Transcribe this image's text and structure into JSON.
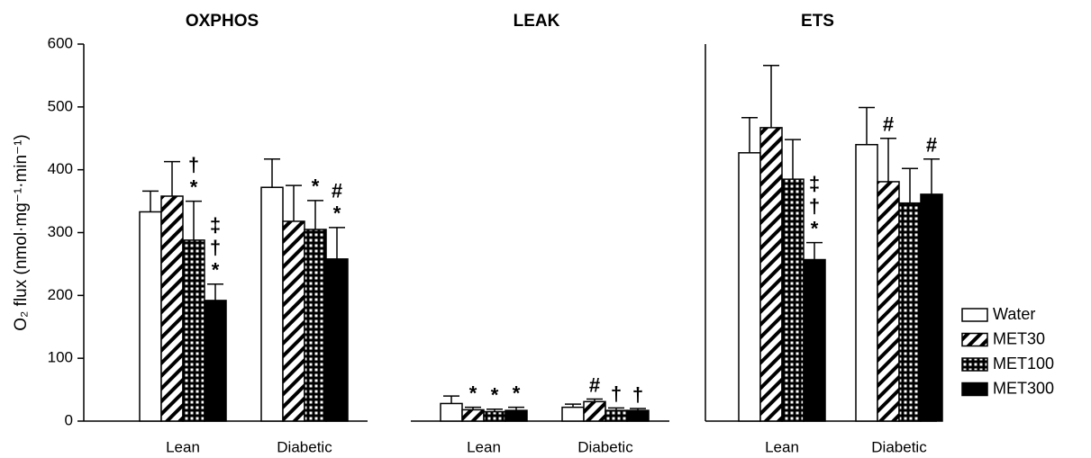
{
  "chart_data": [
    {
      "type": "bar",
      "title": "OXPHOS",
      "ylabel": "O₂ flux (nmol·mg⁻¹·min⁻¹)",
      "categories": [
        "Lean",
        "Diabetic"
      ],
      "ylim": [
        0,
        600
      ],
      "yticks": [
        0,
        100,
        200,
        300,
        400,
        500,
        600
      ],
      "series": [
        {
          "name": "Water",
          "pattern": "open",
          "values": [
            333,
            372
          ],
          "errors": [
            33,
            45
          ],
          "labels": [
            null,
            null
          ]
        },
        {
          "name": "MET30",
          "pattern": "diagonal",
          "values": [
            358,
            318
          ],
          "errors": [
            55,
            57
          ],
          "labels": [
            null,
            null
          ]
        },
        {
          "name": "MET100",
          "pattern": "checker",
          "values": [
            288,
            305
          ],
          "errors": [
            62,
            46
          ],
          "labels": [
            [
              "†",
              "*"
            ],
            [
              "*"
            ]
          ]
        },
        {
          "name": "MET300",
          "pattern": "solid",
          "values": [
            192,
            258
          ],
          "errors": [
            26,
            50
          ],
          "labels": [
            [
              "‡",
              "†",
              "*"
            ],
            [
              "#",
              "*"
            ]
          ]
        }
      ]
    },
    {
      "type": "bar",
      "title": "LEAK",
      "categories": [
        "Lean",
        "Diabetic"
      ],
      "ylim": [
        0,
        600
      ],
      "series": [
        {
          "values": [
            28,
            22
          ],
          "errors": [
            12,
            5
          ],
          "labels": [
            null,
            null
          ]
        },
        {
          "values": [
            18,
            31
          ],
          "errors": [
            4,
            4
          ],
          "labels": [
            [
              "*"
            ],
            [
              "#"
            ]
          ]
        },
        {
          "values": [
            15,
            17
          ],
          "errors": [
            4,
            4
          ],
          "labels": [
            [
              "*"
            ],
            [
              "†"
            ]
          ]
        },
        {
          "values": [
            17,
            17
          ],
          "errors": [
            5,
            3
          ],
          "labels": [
            [
              "*"
            ],
            [
              "†"
            ]
          ]
        }
      ]
    },
    {
      "type": "bar",
      "title": "ETS",
      "categories": [
        "Lean",
        "Diabetic"
      ],
      "ylim": [
        0,
        600
      ],
      "series": [
        {
          "values": [
            427,
            440
          ],
          "errors": [
            56,
            59
          ],
          "labels": [
            null,
            null
          ]
        },
        {
          "values": [
            467,
            381
          ],
          "errors": [
            99,
            69
          ],
          "labels": [
            null,
            [
              "#"
            ]
          ]
        },
        {
          "values": [
            385,
            347
          ],
          "errors": [
            63,
            55
          ],
          "labels": [
            null,
            null
          ]
        },
        {
          "values": [
            257,
            361
          ],
          "errors": [
            27,
            56
          ],
          "labels": [
            [
              "‡",
              "†",
              "*"
            ],
            [
              "#"
            ]
          ]
        }
      ]
    }
  ]
}
